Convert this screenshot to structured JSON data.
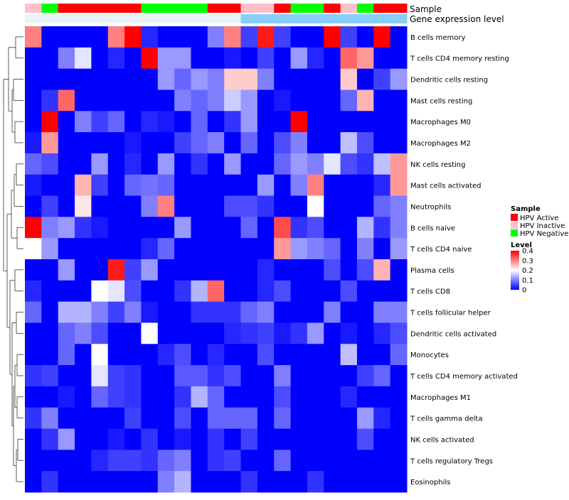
{
  "chart_data": {
    "type": "heatmap",
    "title": "",
    "annotation_tracks": {
      "sample": {
        "label": "Sample",
        "values": [
          "HPV Inactive",
          "HPV Negative",
          "HPV Active",
          "HPV Active",
          "HPV Active",
          "HPV Active",
          "HPV Active",
          "HPV Negative",
          "HPV Negative",
          "HPV Negative",
          "HPV Negative",
          "HPV Active",
          "HPV Active",
          "HPV Inactive",
          "HPV Inactive",
          "HPV Active",
          "HPV Negative",
          "HPV Negative",
          "HPV Active",
          "HPV Inactive",
          "HPV Negative",
          "HPV Active",
          "HPV Active"
        ]
      },
      "gene_expression": {
        "label": "Gene expression level",
        "values": [
          "low",
          "low",
          "low",
          "low",
          "low",
          "low",
          "low",
          "low",
          "low",
          "low",
          "low",
          "low",
          "low",
          "high",
          "high",
          "high",
          "high",
          "high",
          "high",
          "high",
          "high",
          "high",
          "high"
        ]
      }
    },
    "rows": [
      "B cells memory",
      "T cells CD4 memory resting",
      "Dendritic cells resting",
      "Mast cells resting",
      "Macrophages M0",
      "Macrophages M2",
      "NK cells resting",
      "Mast cells activated",
      "Neutrophils",
      "B cells naive",
      "T cells CD4 naive",
      "Plasma cells",
      "T cells CD8",
      "T cells follicular helper",
      "Dendritic cells activated",
      "Monocytes",
      "T cells CD4 memory activated",
      "Macrophages M1",
      "T cells gamma delta",
      "NK cells activated",
      "T cells regulatory  Tregs",
      "Eosinophils"
    ],
    "values": [
      [
        0.3,
        0.0,
        0.0,
        0.0,
        0.0,
        0.3,
        0.4,
        0.03,
        0.0,
        0.0,
        0.0,
        0.1,
        0.3,
        0.05,
        0.38,
        0.05,
        0.0,
        0.0,
        0.4,
        0.05,
        0.0,
        0.4,
        0.0
      ],
      [
        0.0,
        0.0,
        0.1,
        0.18,
        0.0,
        0.03,
        0.0,
        0.4,
        0.12,
        0.12,
        0.0,
        0.0,
        0.02,
        0.0,
        0.05,
        0.0,
        0.12,
        0.03,
        0.0,
        0.32,
        0.28,
        0.0,
        0.0
      ],
      [
        0.0,
        0.0,
        0.0,
        0.0,
        0.0,
        0.0,
        0.0,
        0.0,
        0.12,
        0.08,
        0.12,
        0.1,
        0.24,
        0.24,
        0.1,
        0.0,
        0.0,
        0.0,
        0.0,
        0.24,
        0.0,
        0.05,
        0.12
      ],
      [
        0.0,
        0.04,
        0.32,
        0.0,
        0.0,
        0.0,
        0.0,
        0.0,
        0.0,
        0.1,
        0.08,
        0.1,
        0.16,
        0.12,
        0.0,
        0.02,
        0.0,
        0.0,
        0.0,
        0.08,
        0.26,
        0.0,
        0.0
      ],
      [
        0.0,
        0.4,
        0.0,
        0.1,
        0.05,
        0.08,
        0.0,
        0.03,
        0.02,
        0.0,
        0.08,
        0.0,
        0.04,
        0.12,
        0.0,
        0.0,
        0.4,
        0.0,
        0.0,
        0.0,
        0.0,
        0.0,
        0.0
      ],
      [
        0.02,
        0.28,
        0.0,
        0.0,
        0.0,
        0.0,
        0.02,
        0.0,
        0.0,
        0.05,
        0.08,
        0.1,
        0.0,
        0.08,
        0.0,
        0.06,
        0.1,
        0.0,
        0.0,
        0.15,
        0.06,
        0.0,
        0.0
      ],
      [
        0.08,
        0.06,
        0.0,
        0.0,
        0.12,
        0.0,
        0.03,
        0.0,
        0.12,
        0.0,
        0.04,
        0.0,
        0.12,
        0.0,
        0.0,
        0.08,
        0.12,
        0.1,
        0.18,
        0.06,
        0.04,
        0.15,
        0.28
      ],
      [
        0.02,
        0.0,
        0.0,
        0.26,
        0.05,
        0.0,
        0.08,
        0.09,
        0.08,
        0.0,
        0.0,
        0.0,
        0.0,
        0.0,
        0.12,
        0.0,
        0.1,
        0.3,
        0.0,
        0.0,
        0.0,
        0.03,
        0.28
      ],
      [
        0.0,
        0.05,
        0.0,
        0.22,
        0.0,
        0.0,
        0.0,
        0.1,
        0.3,
        0.0,
        0.0,
        0.0,
        0.06,
        0.06,
        0.04,
        0.0,
        0.0,
        0.2,
        0.0,
        0.0,
        0.0,
        0.08,
        0.1
      ],
      [
        0.4,
        0.1,
        0.12,
        0.04,
        0.02,
        0.0,
        0.0,
        0.0,
        0.0,
        0.12,
        0.0,
        0.0,
        0.0,
        0.08,
        0.0,
        0.34,
        0.04,
        0.06,
        0.0,
        0.0,
        0.14,
        0.04,
        0.1
      ],
      [
        0.2,
        0.12,
        0.0,
        0.0,
        0.0,
        0.0,
        0.0,
        0.03,
        0.08,
        0.0,
        0.0,
        0.0,
        0.0,
        0.0,
        0.0,
        0.28,
        0.12,
        0.1,
        0.08,
        0.0,
        0.1,
        0.0,
        0.12
      ],
      [
        0.0,
        0.0,
        0.12,
        0.0,
        0.0,
        0.38,
        0.05,
        0.12,
        0.0,
        0.0,
        0.0,
        0.0,
        0.0,
        0.0,
        0.03,
        0.0,
        0.0,
        0.0,
        0.06,
        0.0,
        0.06,
        0.26,
        0.0
      ],
      [
        0.03,
        0.0,
        0.0,
        0.0,
        0.2,
        0.18,
        0.06,
        0.0,
        0.0,
        0.04,
        0.14,
        0.32,
        0.0,
        0.0,
        0.03,
        0.06,
        0.0,
        0.0,
        0.0,
        0.06,
        0.0,
        0.0,
        0.0
      ],
      [
        0.08,
        0.0,
        0.14,
        0.14,
        0.1,
        0.05,
        0.1,
        0.02,
        0.0,
        0.0,
        0.04,
        0.04,
        0.04,
        0.08,
        0.1,
        0.0,
        0.0,
        0.0,
        0.1,
        0.0,
        0.0,
        0.1,
        0.1
      ],
      [
        0.0,
        0.0,
        0.08,
        0.1,
        0.06,
        0.0,
        0.0,
        0.2,
        0.0,
        0.0,
        0.0,
        0.0,
        0.03,
        0.04,
        0.05,
        0.02,
        0.04,
        0.12,
        0.0,
        0.02,
        0.0,
        0.03,
        0.06
      ],
      [
        0.0,
        0.0,
        0.08,
        0.0,
        0.2,
        0.0,
        0.0,
        0.0,
        0.03,
        0.06,
        0.0,
        0.03,
        0.0,
        0.0,
        0.06,
        0.0,
        0.0,
        0.0,
        0.0,
        0.15,
        0.0,
        0.0,
        0.08
      ],
      [
        0.04,
        0.05,
        0.0,
        0.0,
        0.18,
        0.05,
        0.04,
        0.0,
        0.0,
        0.07,
        0.07,
        0.04,
        0.06,
        0.0,
        0.0,
        0.1,
        0.0,
        0.0,
        0.0,
        0.0,
        0.05,
        0.08,
        0.0
      ],
      [
        0.0,
        0.0,
        0.02,
        0.0,
        0.08,
        0.05,
        0.04,
        0.0,
        0.0,
        0.04,
        0.14,
        0.08,
        0.0,
        0.0,
        0.0,
        0.06,
        0.0,
        0.0,
        0.0,
        0.03,
        0.0,
        0.0,
        0.0
      ],
      [
        0.04,
        0.1,
        0.0,
        0.0,
        0.0,
        0.0,
        0.05,
        0.0,
        0.0,
        0.06,
        0.0,
        0.08,
        0.08,
        0.08,
        0.0,
        0.08,
        0.0,
        0.0,
        0.0,
        0.0,
        0.12,
        0.03,
        0.0
      ],
      [
        0.0,
        0.04,
        0.12,
        0.0,
        0.0,
        0.02,
        0.0,
        0.04,
        0.0,
        0.02,
        0.0,
        0.04,
        0.0,
        0.05,
        0.0,
        0.0,
        0.0,
        0.0,
        0.0,
        0.0,
        0.06,
        0.0,
        0.0
      ],
      [
        0.0,
        0.0,
        0.0,
        0.0,
        0.03,
        0.05,
        0.05,
        0.04,
        0.08,
        0.1,
        0.0,
        0.04,
        0.05,
        0.0,
        0.0,
        0.08,
        0.0,
        0.0,
        0.0,
        0.0,
        0.0,
        0.0,
        0.0
      ],
      [
        0.0,
        0.04,
        0.0,
        0.0,
        0.0,
        0.0,
        0.0,
        0.0,
        0.1,
        0.14,
        0.0,
        0.0,
        0.0,
        0.04,
        0.0,
        0.0,
        0.0,
        0.04,
        0.0,
        0.0,
        0.0,
        0.0,
        0.0
      ]
    ],
    "legend_sample": {
      "title": "Sample",
      "items": [
        {
          "label": "HPV Active",
          "color": "#ff0000"
        },
        {
          "label": "HPV Inactive",
          "color": "#ffc0cb"
        },
        {
          "label": "HPV Negative",
          "color": "#00ff00"
        }
      ]
    },
    "legend_level": {
      "title": "Level",
      "range": [
        0,
        0.4
      ],
      "ticks": [
        {
          "value": 0.4,
          "label": "0.4"
        },
        {
          "value": 0.3,
          "label": "0.3"
        },
        {
          "value": 0.2,
          "label": "0.2"
        },
        {
          "value": 0.1,
          "label": "0.1"
        },
        {
          "value": 0,
          "label": "0"
        }
      ]
    },
    "colors": {
      "low": "#0000ff",
      "mid": "#ffffff",
      "high": "#ff0000",
      "expression_low": "#e8f4fa",
      "expression_high": "#87cefa"
    },
    "dendrogram": "left"
  }
}
